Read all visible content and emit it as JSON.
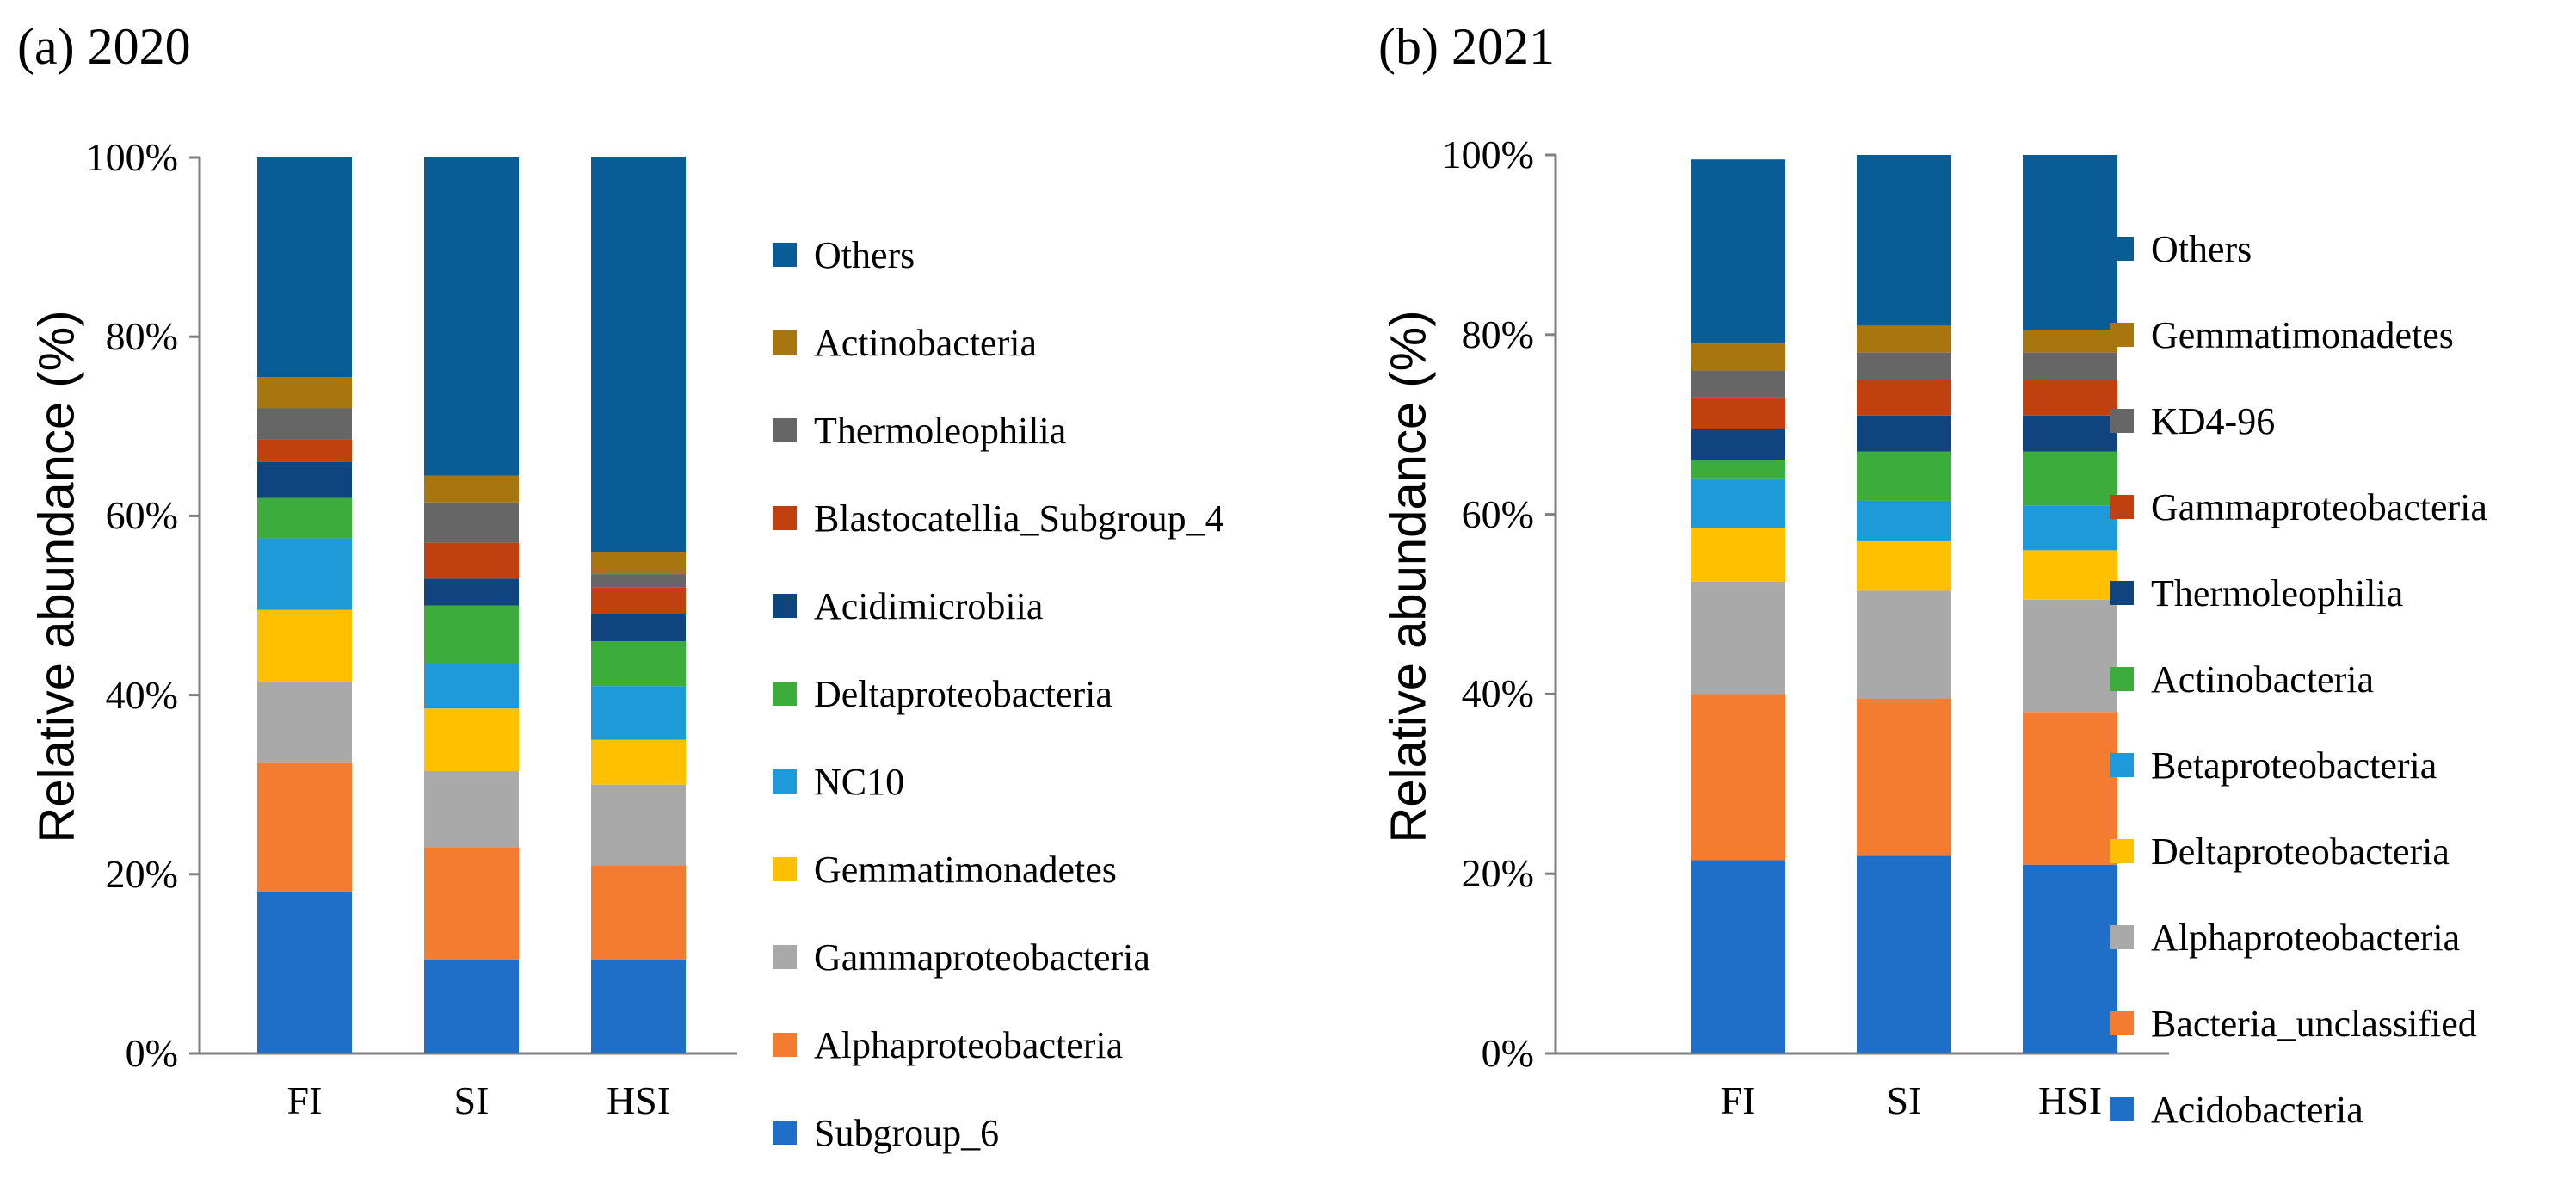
{
  "chart_data": [
    {
      "type": "bar",
      "stacked": true,
      "title": "(a) 2020",
      "ylabel": "Relative abundance (%)",
      "xlabel": "",
      "ylim": [
        0,
        100
      ],
      "yticks": [
        "0%",
        "20%",
        "40%",
        "60%",
        "80%",
        "100%"
      ],
      "categories": [
        "FI",
        "SI",
        "HSI"
      ],
      "series": [
        {
          "name": "Subgroup_6",
          "color": "#1f6fc9",
          "values": [
            18,
            10.5,
            10.5
          ]
        },
        {
          "name": "Alphaproteobacteria",
          "color": "#f47c30",
          "values": [
            14.5,
            12.5,
            10.5
          ]
        },
        {
          "name": "Gammaproteobacteria",
          "color": "#a9a9a9",
          "values": [
            9,
            8.5,
            9
          ]
        },
        {
          "name": "Gemmatimonadetes",
          "color": "#ffc000",
          "values": [
            8,
            7,
            5
          ]
        },
        {
          "name": "NC10",
          "color": "#1f9ad9",
          "values": [
            8,
            5,
            6
          ]
        },
        {
          "name": "Deltaproteobacteria",
          "color": "#3cad3c",
          "values": [
            4.5,
            6.5,
            5
          ]
        },
        {
          "name": "Acidimicrobiia",
          "color": "#10447f",
          "values": [
            4,
            3,
            3
          ]
        },
        {
          "name": "Blastocatellia_Subgroup_4",
          "color": "#c0400f",
          "values": [
            2.5,
            4,
            3
          ]
        },
        {
          "name": "Thermoleophilia",
          "color": "#666666",
          "values": [
            3.5,
            4.5,
            1.5
          ]
        },
        {
          "name": "Actinobacteria",
          "color": "#a8760e",
          "values": [
            3.5,
            3,
            2.5
          ]
        },
        {
          "name": "Others",
          "color": "#0a5c96",
          "values": [
            24.5,
            35.5,
            44
          ]
        }
      ]
    },
    {
      "type": "bar",
      "stacked": true,
      "title": "(b) 2021",
      "ylabel": "Relative abundance (%)",
      "xlabel": "",
      "ylim": [
        0,
        100
      ],
      "yticks": [
        "0%",
        "20%",
        "40%",
        "60%",
        "80%",
        "100%"
      ],
      "categories": [
        "FI",
        "SI",
        "HSI"
      ],
      "series": [
        {
          "name": "Acidobacteria",
          "color": "#1f6fc9",
          "values": [
            21.5,
            22,
            21
          ]
        },
        {
          "name": "Bacteria_unclassified",
          "color": "#f47c30",
          "values": [
            18.5,
            17.5,
            17
          ]
        },
        {
          "name": "Alphaproteobacteria",
          "color": "#a9a9a9",
          "values": [
            12.5,
            12,
            12.5
          ]
        },
        {
          "name": "Deltaproteobacteria",
          "color": "#ffc000",
          "values": [
            6,
            5.5,
            5.5
          ]
        },
        {
          "name": "Betaproteobacteria",
          "color": "#1f9ad9",
          "values": [
            5.5,
            4.5,
            5
          ]
        },
        {
          "name": "Actinobacteria",
          "color": "#3cad3c",
          "values": [
            2,
            5.5,
            6
          ]
        },
        {
          "name": "Thermoleophilia",
          "color": "#10447f",
          "values": [
            3.5,
            4,
            4
          ]
        },
        {
          "name": "Gammaproteobacteria",
          "color": "#c0400f",
          "values": [
            3.5,
            4,
            4
          ]
        },
        {
          "name": "KD4-96",
          "color": "#666666",
          "values": [
            3,
            3,
            3
          ]
        },
        {
          "name": "Gemmatimonadetes",
          "color": "#a8760e",
          "values": [
            3,
            3,
            2.5
          ]
        },
        {
          "name": "Others",
          "color": "#0a5c96",
          "values": [
            20.5,
            19,
            19.5
          ]
        }
      ]
    }
  ]
}
